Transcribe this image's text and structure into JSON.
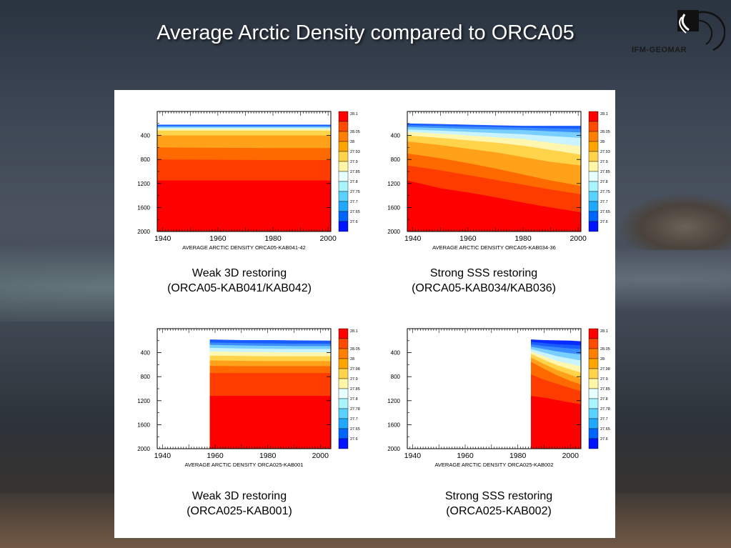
{
  "slide": {
    "title": "Average Arctic Density compared to ORCA05",
    "logo_text": "IFM-GEOMAR"
  },
  "colors": {
    "colorbar": [
      "#ff0000",
      "#ff4a00",
      "#ff7f00",
      "#ffa500",
      "#ffd34a",
      "#fff7a6",
      "#e6ffff",
      "#a8f4ff",
      "#5ad2ff",
      "#20a8ff",
      "#0064ff",
      "#0014ff"
    ]
  },
  "panels": [
    {
      "caption_1": "Weak 3D restoring",
      "caption_2": "(ORCA05-KAB041/KAB042)"
    },
    {
      "caption_1": "Strong SSS restoring",
      "caption_2": "(ORCA05-KAB034/KAB036)"
    },
    {
      "caption_1": "Weak 3D restoring",
      "caption_2": "(ORCA025-KAB001)"
    },
    {
      "caption_1": "Strong SSS restoring",
      "caption_2": "(ORCA025-KAB002)"
    }
  ],
  "chart_data": [
    {
      "type": "area",
      "title": "AVERAGE ARCTIC DENSITY ORCA05-KAB041-42",
      "xlim": [
        1938,
        2001
      ],
      "ylim": [
        2000,
        0
      ],
      "x_ticks": [
        1940,
        1960,
        1980,
        2000
      ],
      "y_ticks": [
        400,
        800,
        1200,
        1600,
        2000
      ],
      "colorbar_labels": [
        "28.1",
        "28.05",
        "28",
        "27.93",
        "27.9",
        "27.85",
        "27.8",
        "27.75",
        "27.7",
        "27.65",
        "27.6"
      ],
      "x": [
        1938,
        1960,
        1980,
        2001
      ],
      "layer_tops": [
        [
          220,
          220,
          220,
          220
        ],
        [
          240,
          240,
          240,
          240
        ],
        [
          255,
          255,
          255,
          255
        ],
        [
          270,
          270,
          270,
          270
        ],
        [
          290,
          290,
          290,
          290
        ],
        [
          320,
          320,
          320,
          320
        ],
        [
          400,
          400,
          400,
          400
        ],
        [
          600,
          605,
          610,
          610
        ],
        [
          800,
          805,
          810,
          810
        ],
        [
          1150,
          1150,
          1150,
          1150
        ]
      ]
    },
    {
      "type": "area",
      "title": "AVERAGE ARCTIC DENSITY  ORCA05-KAB034-36",
      "xlim": [
        1938,
        2001
      ],
      "ylim": [
        2000,
        0
      ],
      "x_ticks": [
        1940,
        1960,
        1980,
        2000
      ],
      "y_ticks": [
        400,
        800,
        1200,
        1600,
        2000
      ],
      "colorbar_labels": [
        "28.1",
        "28.05",
        "28",
        "27.93",
        "27.9",
        "27.85",
        "27.8",
        "27.75",
        "27.7",
        "27.65",
        "27.6"
      ],
      "x": [
        1938,
        1950,
        1960,
        1970,
        1980,
        1990,
        2001
      ],
      "layer_tops": [
        [
          200,
          210,
          220,
          230,
          240,
          240,
          240
        ],
        [
          230,
          240,
          250,
          260,
          270,
          280,
          290
        ],
        [
          260,
          275,
          290,
          300,
          310,
          330,
          350
        ],
        [
          300,
          320,
          340,
          360,
          380,
          410,
          440
        ],
        [
          340,
          370,
          400,
          430,
          460,
          520,
          580
        ],
        [
          400,
          440,
          480,
          520,
          570,
          640,
          720
        ],
        [
          500,
          560,
          620,
          680,
          760,
          840,
          900
        ],
        [
          700,
          780,
          860,
          950,
          1050,
          1150,
          1240
        ],
        [
          900,
          980,
          1060,
          1140,
          1220,
          1300,
          1380
        ],
        [
          1150,
          1280,
          1350,
          1430,
          1520,
          1600,
          1680
        ]
      ]
    },
    {
      "type": "area",
      "title": "AVERAGE ARCTIC DENSITY ORCA025-KAB001",
      "xlim": [
        1938,
        2004
      ],
      "ylim": [
        2000,
        0
      ],
      "x_ticks": [
        1940,
        1960,
        1980,
        2000
      ],
      "y_ticks": [
        400,
        800,
        1200,
        1600,
        2000
      ],
      "colorbar_labels": [
        "28.1",
        "28.05",
        "28",
        "27.98",
        "27.9",
        "27.85",
        "27.8",
        "27.78",
        "27.7",
        "27.65",
        "27.6"
      ],
      "x": [
        1958,
        1970,
        1980,
        1990,
        2004
      ],
      "layer_tops": [
        [
          180,
          190,
          190,
          195,
          200
        ],
        [
          230,
          240,
          245,
          250,
          250
        ],
        [
          270,
          280,
          285,
          290,
          290
        ],
        [
          320,
          330,
          335,
          340,
          340
        ],
        [
          380,
          390,
          390,
          395,
          395
        ],
        [
          450,
          455,
          460,
          460,
          460
        ],
        [
          530,
          535,
          540,
          540,
          540
        ],
        [
          620,
          625,
          625,
          625,
          625
        ],
        [
          740,
          740,
          740,
          740,
          740
        ],
        [
          1120,
          1120,
          1120,
          1120,
          1120
        ]
      ]
    },
    {
      "type": "area",
      "title": "AVERAGE ARCTIC DENSITY ORCA025-KAB002",
      "xlim": [
        1938,
        2004
      ],
      "ylim": [
        2000,
        0
      ],
      "x_ticks": [
        1940,
        1960,
        1980,
        2000
      ],
      "y_ticks": [
        400,
        800,
        1200,
        1600,
        2000
      ],
      "colorbar_labels": [
        "28.1",
        "28.05",
        "28",
        "27.98",
        "27.9",
        "27.85",
        "27.8",
        "27.78",
        "27.7",
        "27.65",
        "27.6"
      ],
      "x": [
        1985,
        1990,
        1995,
        2000,
        2004
      ],
      "layer_tops": [
        [
          180,
          190,
          195,
          200,
          210
        ],
        [
          220,
          240,
          260,
          270,
          280
        ],
        [
          260,
          290,
          310,
          330,
          340
        ],
        [
          300,
          340,
          380,
          410,
          430
        ],
        [
          340,
          400,
          460,
          500,
          530
        ],
        [
          380,
          460,
          540,
          590,
          630
        ],
        [
          420,
          520,
          610,
          680,
          730
        ],
        [
          480,
          590,
          690,
          770,
          830
        ],
        [
          550,
          670,
          780,
          870,
          930
        ],
        [
          760,
          850,
          920,
          990,
          1040
        ],
        [
          1120,
          1150,
          1190,
          1230,
          1260
        ]
      ]
    }
  ]
}
